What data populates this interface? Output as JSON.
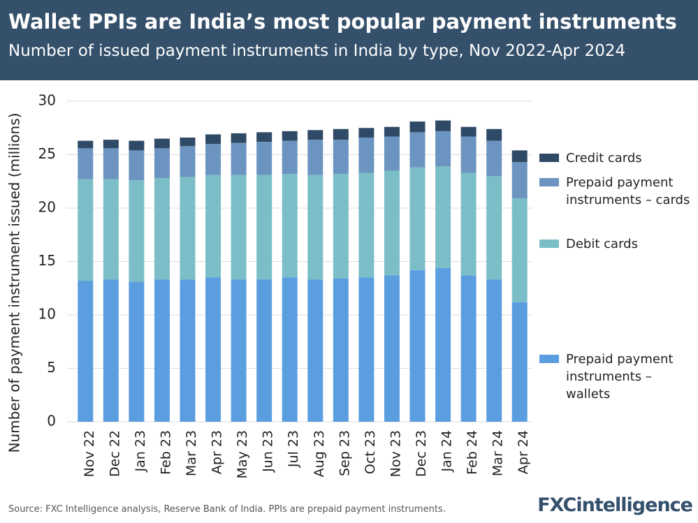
{
  "chart_data": {
    "type": "stacked-bar",
    "title": "Wallet PPIs are India’s most popular payment instruments",
    "subtitle": "Number of issued payment instruments in India by type, Nov 2022-Apr 2024",
    "y_label": "Number of payment instrument issued (millions)",
    "source": "Source: FXC Intelligence analysis, Reserve Bank of India. PPIs are prepaid payment instruments.",
    "logo": "FXCintelligence",
    "categories": [
      "Nov 22",
      "Dec 22",
      "Jan 23",
      "Feb 23",
      "Mar 23",
      "Apr 23",
      "May 23",
      "Jun 23",
      "Jul 23",
      "Aug 23",
      "Sep 23",
      "Oct 23",
      "Nov 23",
      "Dec 23",
      "Jan 24",
      "Feb 24",
      "Mar 24",
      "Apr 24"
    ],
    "series": [
      {
        "name": "Prepaid payment instruments – wallets",
        "color": "#5b9ee0",
        "values": [
          13.2,
          13.3,
          13.1,
          13.3,
          13.3,
          13.5,
          13.3,
          13.3,
          13.5,
          13.3,
          13.4,
          13.5,
          13.7,
          14.2,
          14.4,
          13.7,
          13.3,
          11.2
        ]
      },
      {
        "name": "Debit cards",
        "color": "#7bbec8",
        "values": [
          9.5,
          9.4,
          9.5,
          9.5,
          9.6,
          9.6,
          9.8,
          9.8,
          9.7,
          9.8,
          9.8,
          9.8,
          9.8,
          9.6,
          9.5,
          9.6,
          9.7,
          9.7
        ]
      },
      {
        "name": "Prepaid payment instruments – cards",
        "color": "#6b95c0",
        "values": [
          2.9,
          2.9,
          2.8,
          2.8,
          2.9,
          2.9,
          3.0,
          3.1,
          3.1,
          3.3,
          3.2,
          3.3,
          3.2,
          3.3,
          3.3,
          3.4,
          3.3,
          3.4
        ]
      },
      {
        "name": "Credit cards",
        "color": "#2f4a66",
        "values": [
          0.7,
          0.8,
          0.9,
          0.9,
          0.8,
          0.9,
          0.9,
          0.9,
          0.9,
          0.9,
          1.0,
          0.9,
          0.9,
          1.0,
          1.0,
          0.9,
          1.1,
          1.1
        ]
      }
    ],
    "ylim": [
      0,
      30
    ],
    "yticks": [
      0,
      5,
      10,
      15,
      20,
      25,
      30
    ],
    "grid": true
  }
}
